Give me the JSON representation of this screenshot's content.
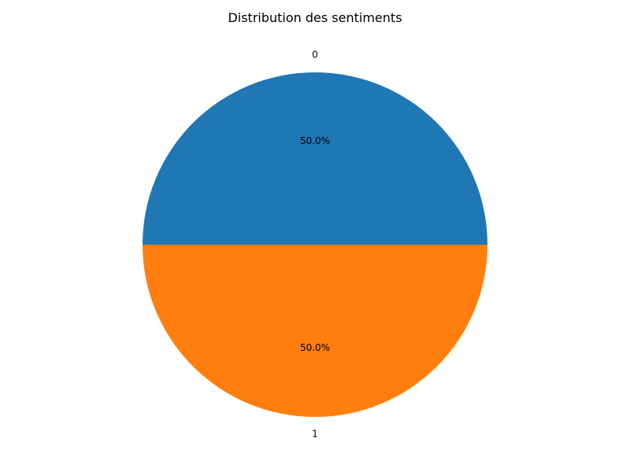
{
  "chart_data": {
    "type": "pie",
    "title": "Distribution des sentiments",
    "labels": [
      "0",
      "1"
    ],
    "values": [
      50.0,
      50.0
    ],
    "percent_labels": [
      "50.0%",
      "50.0%"
    ],
    "colors": [
      "#1f77b4",
      "#ff7f0e"
    ],
    "start_angle_deg": 0,
    "legend": "none"
  }
}
